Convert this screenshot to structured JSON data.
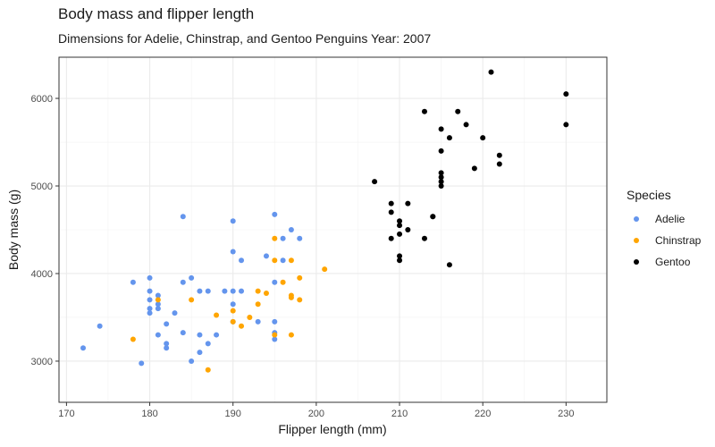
{
  "chart_data": {
    "type": "scatter",
    "title": "Body mass and flipper length",
    "subtitle": "Dimensions for Adelie, Chinstrap, and Gentoo Penguins Year: 2007",
    "xlabel": "Flipper length (mm)",
    "ylabel": "Body mass (g)",
    "xlim": [
      169.1,
      234.9
    ],
    "ylim": [
      2530,
      6470
    ],
    "x_ticks": [
      170,
      180,
      190,
      200,
      210,
      220,
      230
    ],
    "y_ticks": [
      3000,
      4000,
      5000,
      6000
    ],
    "grid": true,
    "legend": {
      "title": "Species",
      "position": "right"
    },
    "series": [
      {
        "name": "Adelie",
        "color": "#6495ED",
        "points": [
          [
            172,
            3150
          ],
          [
            174,
            3400
          ],
          [
            178,
            3900
          ],
          [
            179,
            2975
          ],
          [
            180,
            3950
          ],
          [
            180,
            3800
          ],
          [
            180,
            3700
          ],
          [
            180,
            3600
          ],
          [
            180,
            3550
          ],
          [
            181,
            3750
          ],
          [
            181,
            3650
          ],
          [
            181,
            3600
          ],
          [
            181,
            3300
          ],
          [
            182,
            3425
          ],
          [
            182,
            3200
          ],
          [
            182,
            3150
          ],
          [
            183,
            3550
          ],
          [
            184,
            4650
          ],
          [
            184,
            3900
          ],
          [
            184,
            3325
          ],
          [
            185,
            3950
          ],
          [
            185,
            3000
          ],
          [
            186,
            3800
          ],
          [
            186,
            3300
          ],
          [
            186,
            3100
          ],
          [
            187,
            3800
          ],
          [
            187,
            3200
          ],
          [
            188,
            3300
          ],
          [
            189,
            3800
          ],
          [
            190,
            4600
          ],
          [
            190,
            4250
          ],
          [
            190,
            3800
          ],
          [
            190,
            3650
          ],
          [
            190,
            3450
          ],
          [
            191,
            4150
          ],
          [
            191,
            3800
          ],
          [
            193,
            3450
          ],
          [
            194,
            4200
          ],
          [
            195,
            4675
          ],
          [
            195,
            3900
          ],
          [
            195,
            3450
          ],
          [
            195,
            3325
          ],
          [
            195,
            3250
          ],
          [
            196,
            4400
          ],
          [
            196,
            4150
          ],
          [
            197,
            4500
          ],
          [
            198,
            4400
          ]
        ]
      },
      {
        "name": "Chinstrap",
        "color": "#FFA500",
        "points": [
          [
            178,
            3250
          ],
          [
            181,
            3700
          ],
          [
            185,
            3700
          ],
          [
            187,
            2900
          ],
          [
            188,
            3525
          ],
          [
            190,
            3575
          ],
          [
            190,
            3450
          ],
          [
            191,
            3400
          ],
          [
            192,
            3500
          ],
          [
            193,
            3800
          ],
          [
            193,
            3650
          ],
          [
            194,
            3775
          ],
          [
            195,
            4400
          ],
          [
            195,
            4150
          ],
          [
            195,
            3300
          ],
          [
            196,
            3900
          ],
          [
            197,
            4150
          ],
          [
            197,
            3750
          ],
          [
            197,
            3725
          ],
          [
            197,
            3300
          ],
          [
            198,
            3950
          ],
          [
            198,
            3700
          ],
          [
            201,
            4050
          ]
        ]
      },
      {
        "name": "Gentoo",
        "color": "#000000",
        "points": [
          [
            207,
            5050
          ],
          [
            209,
            4800
          ],
          [
            209,
            4700
          ],
          [
            209,
            4400
          ],
          [
            210,
            4600
          ],
          [
            210,
            4550
          ],
          [
            210,
            4450
          ],
          [
            210,
            4200
          ],
          [
            210,
            4150
          ],
          [
            211,
            4800
          ],
          [
            211,
            4500
          ],
          [
            213,
            5850
          ],
          [
            213,
            4400
          ],
          [
            214,
            4650
          ],
          [
            214,
            4650
          ],
          [
            215,
            5650
          ],
          [
            215,
            5400
          ],
          [
            215,
            5150
          ],
          [
            215,
            5100
          ],
          [
            215,
            5050
          ],
          [
            215,
            5000
          ],
          [
            216,
            5550
          ],
          [
            216,
            4100
          ],
          [
            217,
            5850
          ],
          [
            218,
            5700
          ],
          [
            219,
            5200
          ],
          [
            220,
            5550
          ],
          [
            221,
            6300
          ],
          [
            222,
            5350
          ],
          [
            222,
            5250
          ],
          [
            230,
            6050
          ],
          [
            230,
            5700
          ]
        ]
      }
    ]
  }
}
